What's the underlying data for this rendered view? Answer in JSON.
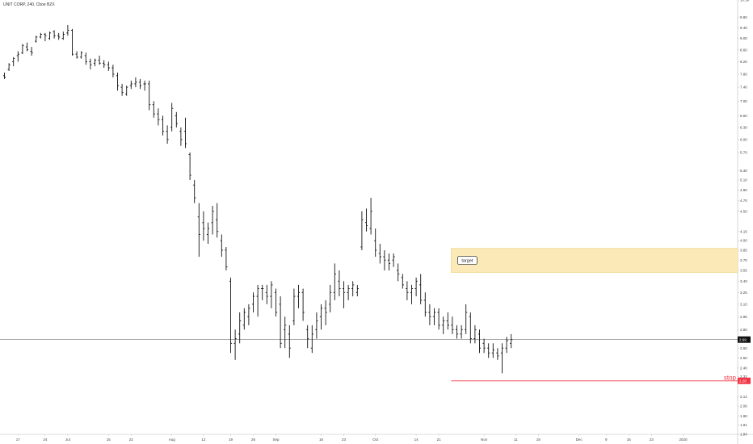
{
  "title": "UNIT CORP, 240, Cboe BZX",
  "chart_data": {
    "type": "ohlc",
    "symbol": "UNIT CORP",
    "interval": "240",
    "exchange": "Cboe BZX",
    "y_scale": "log",
    "ylim": [
      1.84,
      10.5
    ],
    "y_ticks": [
      "10.50",
      "9.80",
      "9.40",
      "9.00",
      "8.60",
      "8.20",
      "7.80",
      "7.40",
      "7.00",
      "6.60",
      "6.30",
      "6.00",
      "5.70",
      "5.30",
      "5.10",
      "4.90",
      "4.70",
      "4.50",
      "4.15",
      "4.00",
      "3.85",
      "3.70",
      "3.55",
      "3.40",
      "3.25",
      "3.10",
      "2.95",
      "2.80",
      "2.60",
      "2.50",
      "2.40",
      "2.32",
      "2.14",
      "2.06",
      "1.98",
      "1.91",
      "1.84"
    ],
    "x_ticks": [
      "17",
      "24",
      "Jul",
      "15",
      "22",
      "Aug",
      "12",
      "19",
      "26",
      "Sep",
      "16",
      "23",
      "Oct",
      "14",
      "21",
      "Nov",
      "11",
      "18",
      "Dec",
      "9",
      "16",
      "23",
      "2020"
    ],
    "x_tick_bar_index": [
      3,
      9,
      14,
      23,
      28,
      37,
      44,
      50,
      55,
      60,
      70,
      75,
      82,
      91,
      96,
      106,
      113,
      118,
      127,
      133,
      138,
      143,
      150
    ],
    "current_price": "2.69",
    "stop": {
      "label": "stop",
      "price": "2.28",
      "color": "#f23645"
    },
    "target": {
      "label": "target",
      "low": 3.52,
      "high": 3.88,
      "fill": "#fbe9b7",
      "border": "#eed68a",
      "start_bar": 99
    },
    "bars": [
      [
        7.75,
        7.85,
        7.65,
        7.7
      ],
      [
        7.95,
        8.15,
        7.9,
        8.1
      ],
      [
        8.2,
        8.35,
        8.05,
        8.3
      ],
      [
        8.4,
        8.55,
        8.2,
        8.45
      ],
      [
        8.5,
        8.8,
        8.45,
        8.75
      ],
      [
        8.7,
        8.85,
        8.55,
        8.6
      ],
      [
        8.55,
        8.7,
        8.4,
        8.5
      ],
      [
        8.9,
        9.1,
        8.85,
        9.05
      ],
      [
        9.05,
        9.2,
        9.0,
        9.15
      ],
      [
        9.15,
        9.2,
        8.9,
        9.1
      ],
      [
        9.0,
        9.25,
        8.95,
        9.2
      ],
      [
        9.25,
        9.3,
        9.0,
        9.1
      ],
      [
        9.1,
        9.2,
        8.95,
        9.05
      ],
      [
        9.0,
        9.25,
        8.95,
        9.15
      ],
      [
        9.2,
        9.5,
        9.1,
        9.3
      ],
      [
        9.3,
        9.35,
        8.4,
        8.45
      ],
      [
        8.45,
        8.55,
        8.3,
        8.35
      ],
      [
        8.35,
        8.55,
        8.3,
        8.5
      ],
      [
        8.4,
        8.5,
        8.1,
        8.2
      ],
      [
        8.2,
        8.3,
        7.95,
        8.1
      ],
      [
        8.15,
        8.3,
        8.05,
        8.25
      ],
      [
        8.25,
        8.4,
        8.1,
        8.15
      ],
      [
        8.15,
        8.25,
        8.0,
        8.1
      ],
      [
        8.1,
        8.2,
        7.9,
        8.0
      ],
      [
        8.0,
        8.1,
        7.7,
        7.8
      ],
      [
        7.75,
        7.85,
        7.3,
        7.45
      ],
      [
        7.4,
        7.5,
        7.15,
        7.25
      ],
      [
        7.2,
        7.45,
        7.15,
        7.4
      ],
      [
        7.45,
        7.6,
        7.35,
        7.5
      ],
      [
        7.5,
        7.7,
        7.4,
        7.55
      ],
      [
        7.55,
        7.65,
        7.35,
        7.45
      ],
      [
        7.5,
        7.6,
        7.3,
        7.5
      ],
      [
        7.5,
        7.6,
        6.75,
        6.9
      ],
      [
        6.9,
        7.0,
        6.55,
        6.65
      ],
      [
        6.65,
        6.8,
        6.35,
        6.5
      ],
      [
        6.5,
        6.6,
        6.1,
        6.2
      ],
      [
        6.2,
        6.35,
        5.9,
        6.0
      ],
      [
        6.3,
        6.95,
        6.2,
        6.8
      ],
      [
        6.6,
        6.7,
        6.3,
        6.4
      ],
      [
        6.2,
        6.3,
        5.85,
        6.0
      ],
      [
        6.2,
        6.55,
        5.8,
        5.9
      ],
      [
        5.65,
        5.7,
        5.1,
        5.2
      ],
      [
        5.0,
        5.1,
        4.65,
        4.75
      ],
      [
        4.4,
        4.65,
        3.75,
        4.1
      ],
      [
        4.3,
        4.5,
        4.0,
        4.2
      ],
      [
        4.1,
        4.3,
        3.95,
        4.2
      ],
      [
        4.3,
        4.6,
        4.1,
        4.5
      ],
      [
        4.35,
        4.65,
        4.05,
        4.15
      ],
      [
        4.0,
        4.1,
        3.75,
        3.85
      ],
      [
        3.85,
        3.9,
        3.55,
        3.6
      ],
      [
        3.4,
        3.45,
        2.55,
        2.65
      ],
      [
        2.65,
        2.8,
        2.48,
        2.7
      ],
      [
        2.75,
        3.0,
        2.65,
        2.9
      ],
      [
        2.85,
        3.05,
        2.8,
        3.0
      ],
      [
        2.95,
        3.1,
        2.85,
        3.05
      ],
      [
        3.1,
        3.25,
        3.0,
        3.2
      ],
      [
        3.2,
        3.35,
        2.95,
        3.3
      ],
      [
        3.3,
        3.35,
        3.15,
        3.3
      ],
      [
        3.25,
        3.35,
        3.1,
        3.2
      ],
      [
        3.2,
        3.4,
        3.05,
        3.35
      ],
      [
        3.25,
        3.3,
        2.95,
        3.0
      ],
      [
        3.1,
        3.2,
        2.6,
        2.65
      ],
      [
        2.8,
        2.95,
        2.6,
        2.85
      ],
      [
        2.75,
        2.85,
        2.5,
        2.6
      ],
      [
        2.9,
        3.3,
        2.85,
        3.2
      ],
      [
        3.2,
        3.35,
        3.05,
        3.25
      ],
      [
        3.25,
        3.3,
        2.9,
        3.0
      ],
      [
        2.8,
        2.85,
        2.6,
        2.7
      ],
      [
        2.6,
        2.85,
        2.55,
        2.75
      ],
      [
        2.8,
        3.0,
        2.7,
        2.9
      ],
      [
        2.95,
        3.1,
        2.8,
        3.05
      ],
      [
        3.05,
        3.15,
        2.85,
        3.0
      ],
      [
        3.1,
        3.35,
        3.0,
        3.25
      ],
      [
        3.25,
        3.65,
        3.15,
        3.5
      ],
      [
        3.4,
        3.55,
        3.2,
        3.3
      ],
      [
        3.3,
        3.4,
        3.05,
        3.25
      ],
      [
        3.25,
        3.35,
        3.15,
        3.3
      ],
      [
        3.3,
        3.4,
        3.2,
        3.35
      ],
      [
        3.25,
        3.35,
        3.2,
        3.3
      ],
      [
        3.9,
        4.5,
        3.85,
        4.35
      ],
      [
        4.3,
        4.55,
        4.15,
        4.25
      ],
      [
        4.2,
        4.75,
        4.1,
        4.5
      ],
      [
        4.0,
        4.2,
        3.75,
        3.85
      ],
      [
        3.8,
        3.95,
        3.65,
        3.75
      ],
      [
        3.75,
        3.85,
        3.55,
        3.7
      ],
      [
        3.7,
        3.8,
        3.55,
        3.65
      ],
      [
        3.7,
        3.8,
        3.6,
        3.75
      ],
      [
        3.55,
        3.65,
        3.4,
        3.5
      ],
      [
        3.45,
        3.5,
        3.3,
        3.35
      ],
      [
        3.3,
        3.4,
        3.15,
        3.25
      ],
      [
        3.25,
        3.35,
        3.1,
        3.3
      ],
      [
        3.3,
        3.45,
        3.2,
        3.4
      ],
      [
        3.35,
        3.5,
        3.1,
        3.15
      ],
      [
        3.15,
        3.25,
        2.95,
        3.0
      ],
      [
        3.0,
        3.1,
        2.85,
        2.95
      ],
      [
        2.95,
        3.05,
        2.85,
        3.0
      ],
      [
        3.0,
        3.05,
        2.8,
        2.85
      ],
      [
        2.85,
        2.95,
        2.75,
        2.9
      ],
      [
        2.9,
        3.0,
        2.8,
        2.85
      ],
      [
        2.85,
        2.95,
        2.75,
        2.8
      ],
      [
        2.8,
        2.85,
        2.7,
        2.75
      ],
      [
        2.75,
        2.85,
        2.7,
        2.8
      ],
      [
        2.8,
        3.1,
        2.75,
        3.0
      ],
      [
        2.95,
        3.0,
        2.65,
        2.7
      ],
      [
        2.7,
        2.85,
        2.65,
        2.8
      ],
      [
        2.75,
        2.8,
        2.55,
        2.6
      ],
      [
        2.65,
        2.7,
        2.55,
        2.6
      ],
      [
        2.6,
        2.65,
        2.5,
        2.55
      ],
      [
        2.55,
        2.65,
        2.5,
        2.58
      ],
      [
        2.55,
        2.6,
        2.48,
        2.52
      ],
      [
        2.55,
        2.65,
        2.35,
        2.6
      ],
      [
        2.6,
        2.72,
        2.55,
        2.68
      ],
      [
        2.65,
        2.75,
        2.6,
        2.69
      ]
    ]
  }
}
